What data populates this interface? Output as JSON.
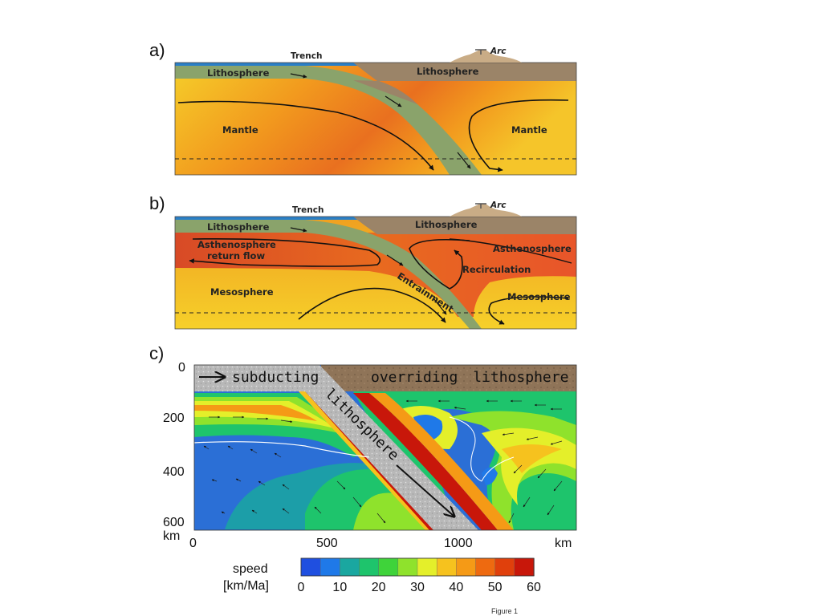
{
  "panels": {
    "a": {
      "letter": "a)",
      "labels": {
        "trench": "Trench",
        "arc": "Arc",
        "lithosphere_left": "Lithosphere",
        "lithosphere_right": "Lithosphere",
        "mantle_left": "Mantle",
        "mantle_right": "Mantle"
      }
    },
    "b": {
      "letter": "b)",
      "labels": {
        "trench": "Trench",
        "arc": "Arc",
        "lithosphere_left": "Lithosphere",
        "lithosphere_right": "Lithosphere",
        "astheno_return_1": "Asthenosphere",
        "astheno_return_2": "return flow",
        "asthenosphere_right": "Asthenosphere",
        "recirculation": "Recirculation",
        "entrainment": "Entrainment",
        "mesosphere_left": "Mesosphere",
        "mesosphere_right": "Mesosphere"
      }
    },
    "c": {
      "letter": "c)",
      "labels": {
        "subducting": "subducting",
        "overriding": "overriding lithosphere",
        "lithosphere": "lithosphere"
      },
      "y_ticks": [
        "0",
        "200",
        "400",
        "600"
      ],
      "y_unit": "km",
      "x_ticks": [
        "0",
        "500",
        "1000"
      ],
      "x_unit": "km",
      "colorbar": {
        "title_1": "speed",
        "title_2": "[km/Ma]",
        "ticks": [
          "0",
          "10",
          "20",
          "30",
          "40",
          "50",
          "60"
        ],
        "colors": [
          "#1f4fe0",
          "#1f79e8",
          "#1aa7a0",
          "#1ec46c",
          "#3fd33a",
          "#8fe22c",
          "#e4ef2a",
          "#f6c21e",
          "#f59a16",
          "#ee6a10",
          "#e0400c",
          "#c8170a"
        ]
      }
    }
  },
  "caption": "Figure 1"
}
